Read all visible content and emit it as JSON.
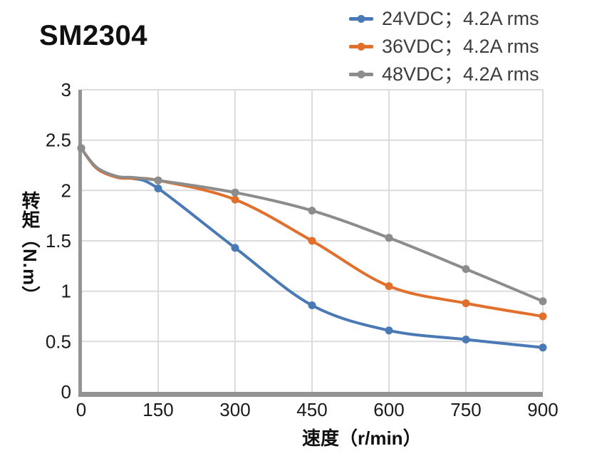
{
  "page": {
    "title": "SM2304"
  },
  "legend": {
    "items": [
      {
        "label": "24VDC；4.2A rms",
        "color": "#4A7AB6"
      },
      {
        "label": "36VDC；4.2A rms",
        "color": "#E2702D"
      },
      {
        "label": "48VDC；4.2A rms",
        "color": "#8C8C8C"
      }
    ]
  },
  "colors": {
    "axis": "#949494",
    "grid": "#dcdcdc",
    "tick_text": "#1a1a1a",
    "legend_text": "#3d3d3d",
    "title_text": "#101010",
    "background": "#ffffff"
  },
  "chart_data": {
    "type": "line",
    "title": "SM2304",
    "xlabel": "速度（r/min）",
    "ylabel": "转矩（N.m）",
    "xlim": [
      0,
      900
    ],
    "ylim": [
      0,
      3
    ],
    "xticks": [
      0,
      150,
      300,
      450,
      600,
      750,
      900
    ],
    "yticks": [
      0,
      0.5,
      1,
      1.5,
      2,
      2.5,
      3
    ],
    "grid": true,
    "legend_position": "top-right",
    "marker_x": [
      0,
      150,
      300,
      450,
      600,
      750,
      900
    ],
    "series": [
      {
        "name": "24VDC；4.2A rms",
        "color": "#4A7AB6",
        "x": [
          0,
          30,
          70,
          100,
          150,
          300,
          450,
          600,
          750,
          900
        ],
        "y": [
          2.42,
          2.22,
          2.13,
          2.12,
          2.02,
          1.43,
          0.86,
          0.61,
          0.52,
          0.44
        ]
      },
      {
        "name": "36VDC；4.2A rms",
        "color": "#E2702D",
        "x": [
          0,
          30,
          70,
          100,
          150,
          300,
          450,
          600,
          750,
          900
        ],
        "y": [
          2.42,
          2.22,
          2.13,
          2.12,
          2.1,
          1.91,
          1.5,
          1.05,
          0.88,
          0.75
        ]
      },
      {
        "name": "48VDC；4.2A rms",
        "color": "#8C8C8C",
        "x": [
          0,
          30,
          70,
          100,
          150,
          300,
          450,
          600,
          750,
          900
        ],
        "y": [
          2.42,
          2.23,
          2.14,
          2.13,
          2.1,
          1.98,
          1.8,
          1.53,
          1.22,
          0.9
        ]
      }
    ]
  }
}
